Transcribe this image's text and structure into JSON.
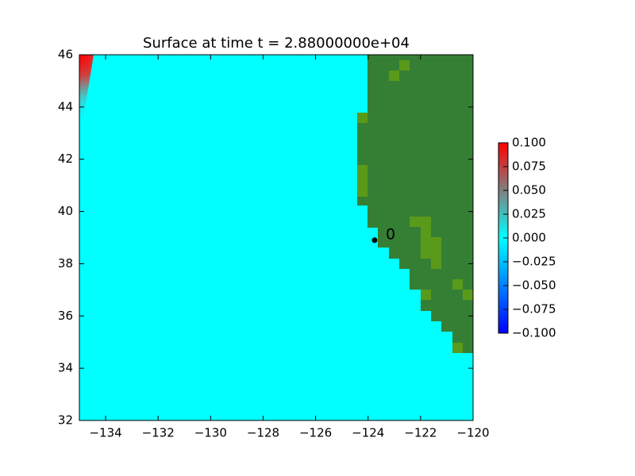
{
  "chart_data": {
    "type": "heatmap",
    "title": "Surface at time t = 2.88000000e+04",
    "xlim": [
      -135,
      -120
    ],
    "ylim": [
      32,
      46
    ],
    "xticks": [
      {
        "value": -134,
        "label": "−134"
      },
      {
        "value": -132,
        "label": "−132"
      },
      {
        "value": -130,
        "label": "−130"
      },
      {
        "value": -128,
        "label": "−128"
      },
      {
        "value": -126,
        "label": "−126"
      },
      {
        "value": -124,
        "label": "−124"
      },
      {
        "value": -122,
        "label": "−122"
      },
      {
        "value": -120,
        "label": "−120"
      }
    ],
    "yticks": [
      32,
      34,
      36,
      38,
      40,
      42,
      44,
      46
    ],
    "points": [
      {
        "x": -123.75,
        "y": 38.9,
        "label": "0",
        "color": "#000000"
      }
    ],
    "colorbar": {
      "lim": [
        -0.1,
        0.1
      ],
      "ticks": [
        {
          "value": 0.1,
          "label": "0.100"
        },
        {
          "value": 0.075,
          "label": "0.075"
        },
        {
          "value": 0.05,
          "label": "0.050"
        },
        {
          "value": 0.025,
          "label": "0.025"
        },
        {
          "value": 0,
          "label": "0.000"
        },
        {
          "value": -0.025,
          "label": "−0.025"
        },
        {
          "value": -0.05,
          "label": "−0.050"
        },
        {
          "value": -0.075,
          "label": "−0.075"
        },
        {
          "value": -0.1,
          "label": "−0.100"
        }
      ]
    }
  }
}
